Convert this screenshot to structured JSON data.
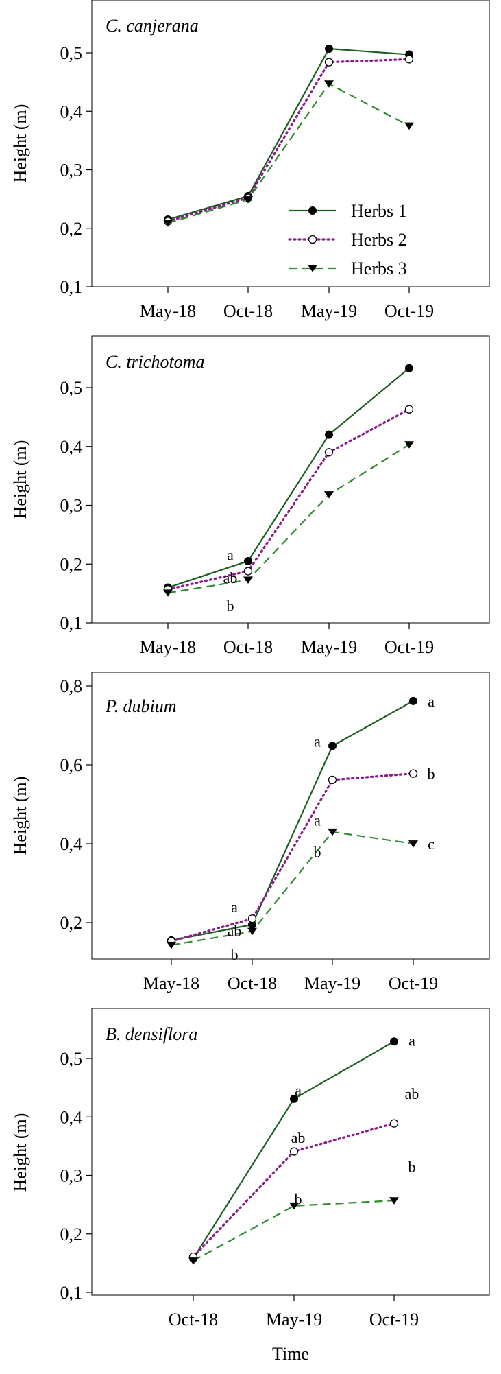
{
  "chart_data": [
    {
      "type": "line",
      "title": "C. canjerana",
      "ylabel": "Height (m)",
      "xlabel": "",
      "categories": [
        "May-18",
        "Oct-18",
        "May-19",
        "Oct-19"
      ],
      "ylim": [
        0.1,
        0.58
      ],
      "yticks": [
        "0,1",
        "0,2",
        "0,3",
        "0,4",
        "0,5"
      ],
      "legend": {
        "position": "bottom-right",
        "entries": [
          "Herbs 1",
          "Herbs 2",
          "Herbs 3"
        ]
      },
      "series": [
        {
          "name": "Herbs 1",
          "values": [
            0.215,
            0.255,
            0.507,
            0.497
          ],
          "color": "#1b5e20",
          "marker": "filled-circle",
          "dash": "solid"
        },
        {
          "name": "Herbs 2",
          "values": [
            0.212,
            0.252,
            0.484,
            0.489
          ],
          "color": "#8b1a8b",
          "marker": "open-circle",
          "dash": "dotted"
        },
        {
          "name": "Herbs 3",
          "values": [
            0.209,
            0.249,
            0.447,
            0.375
          ],
          "color": "#2e8b2e",
          "marker": "filled-triangle-down",
          "dash": "dashed"
        }
      ],
      "annotations": []
    },
    {
      "type": "line",
      "title": "C. trichotoma",
      "ylabel": "Height (m)",
      "xlabel": "",
      "categories": [
        "May-18",
        "Oct-18",
        "May-19",
        "Oct-19"
      ],
      "ylim": [
        0.1,
        0.58
      ],
      "yticks": [
        "0,1",
        "0,2",
        "0,3",
        "0,4",
        "0,5"
      ],
      "series": [
        {
          "name": "Herbs 1",
          "values": [
            0.16,
            0.205,
            0.42,
            0.533
          ],
          "color": "#1b5e20",
          "marker": "filled-circle",
          "dash": "solid"
        },
        {
          "name": "Herbs 2",
          "values": [
            0.157,
            0.188,
            0.39,
            0.463
          ],
          "color": "#8b1a8b",
          "marker": "open-circle",
          "dash": "dotted"
        },
        {
          "name": "Herbs 3",
          "values": [
            0.151,
            0.173,
            0.318,
            0.403
          ],
          "color": "#2e8b2e",
          "marker": "filled-triangle-down",
          "dash": "dashed"
        }
      ],
      "annotations": [
        {
          "text": "a",
          "category": "Oct-18",
          "y": 0.216
        },
        {
          "text": "ab",
          "category": "Oct-18",
          "y": 0.177
        },
        {
          "text": "b",
          "category": "Oct-18",
          "y": 0.13
        }
      ]
    },
    {
      "type": "line",
      "title": "P. dubium",
      "ylabel": "Height (m)",
      "xlabel": "",
      "categories": [
        "May-18",
        "Oct-18",
        "May-19",
        "Oct-19"
      ],
      "ylim": [
        0.1,
        0.83
      ],
      "yticks": [
        "0,2",
        "0,4",
        "0,6",
        "0,8"
      ],
      "series": [
        {
          "name": "Herbs 1",
          "values": [
            0.155,
            0.195,
            0.648,
            0.762
          ],
          "color": "#1b5e20",
          "marker": "filled-circle",
          "dash": "solid"
        },
        {
          "name": "Herbs 2",
          "values": [
            0.153,
            0.21,
            0.562,
            0.578
          ],
          "color": "#8b1a8b",
          "marker": "open-circle",
          "dash": "dotted"
        },
        {
          "name": "Herbs 3",
          "values": [
            0.143,
            0.178,
            0.43,
            0.4
          ],
          "color": "#2e8b2e",
          "marker": "filled-triangle-down",
          "dash": "dashed"
        }
      ],
      "annotations": [
        {
          "text": "a",
          "category": "Oct-18",
          "y": 0.24
        },
        {
          "text": "ab",
          "category": "Oct-18",
          "y": 0.18
        },
        {
          "text": "b",
          "category": "Oct-18",
          "y": 0.12
        },
        {
          "text": "a",
          "category": "May-19",
          "y": 0.66
        },
        {
          "text": "a",
          "category": "May-19",
          "y": 0.46
        },
        {
          "text": "b",
          "category": "May-19",
          "y": 0.38
        },
        {
          "text": "a",
          "category": "Oct-19",
          "y": 0.762
        },
        {
          "text": "b",
          "category": "Oct-19",
          "y": 0.578
        },
        {
          "text": "c",
          "category": "Oct-19",
          "y": 0.4
        }
      ]
    },
    {
      "type": "line",
      "title": "B. densiflora",
      "ylabel": "Height (m)",
      "xlabel": "Time",
      "categories": [
        "Oct-18",
        "May-19",
        "Oct-19"
      ],
      "ylim": [
        0.1,
        0.58
      ],
      "yticks": [
        "0,1",
        "0,2",
        "0,3",
        "0,4",
        "0,5"
      ],
      "series": [
        {
          "name": "Herbs 1",
          "values": [
            0.158,
            0.431,
            0.529
          ],
          "color": "#1b5e20",
          "marker": "filled-circle",
          "dash": "solid"
        },
        {
          "name": "Herbs 2",
          "values": [
            0.161,
            0.341,
            0.389
          ],
          "color": "#8b1a8b",
          "marker": "open-circle",
          "dash": "dotted"
        },
        {
          "name": "Herbs 3",
          "values": [
            0.154,
            0.248,
            0.257
          ],
          "color": "#2e8b2e",
          "marker": "filled-triangle-down",
          "dash": "dashed"
        }
      ],
      "annotations": [
        {
          "text": "a",
          "category": "May-19",
          "y": 0.446
        },
        {
          "text": "ab",
          "category": "May-19",
          "y": 0.365
        },
        {
          "text": "b",
          "category": "May-19",
          "y": 0.26
        },
        {
          "text": "a",
          "category": "Oct-19",
          "y": 0.531
        },
        {
          "text": "ab",
          "category": "Oct-19",
          "y": 0.44
        },
        {
          "text": "b",
          "category": "Oct-19",
          "y": 0.315
        }
      ]
    }
  ]
}
